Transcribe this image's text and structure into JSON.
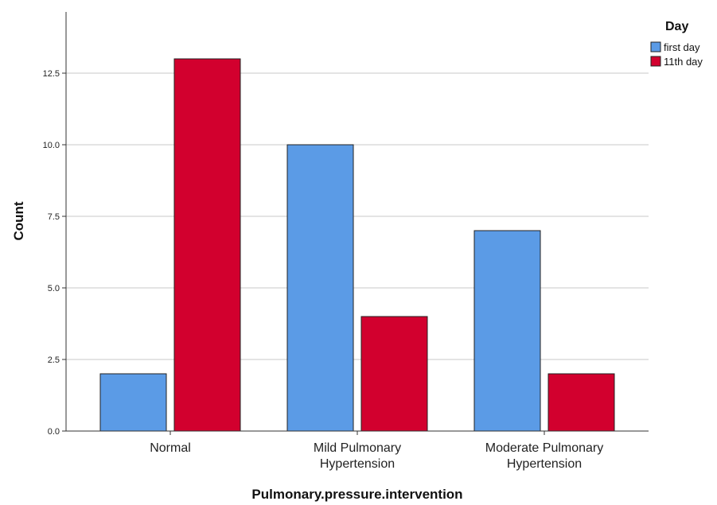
{
  "chart_data": {
    "type": "bar",
    "title": "",
    "xlabel": "Pulmonary.pressure.intervention",
    "ylabel": "Count",
    "ylim": [
      0,
      14.5
    ],
    "yticks": [
      "0.0",
      "2.5",
      "5.0",
      "7.5",
      "10.0",
      "12.5"
    ],
    "categories": [
      [
        "Normal"
      ],
      [
        "Mild Pulmonary",
        "Hypertension"
      ],
      [
        "Moderate Pulmonary",
        "Hypertension"
      ]
    ],
    "series": [
      {
        "name": "first day",
        "color": "#5b9be6",
        "values": [
          2,
          10,
          7
        ]
      },
      {
        "name": "11th day",
        "color": "#d2002e",
        "values": [
          13,
          4,
          2
        ]
      }
    ],
    "legend": {
      "title": "Day",
      "position": "top-right"
    },
    "grid": "horizontal"
  }
}
